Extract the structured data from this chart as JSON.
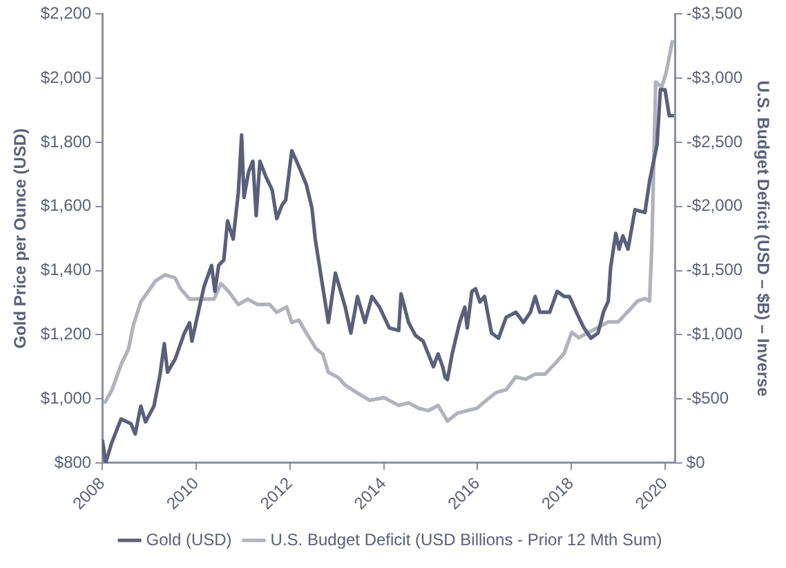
{
  "chart_data": {
    "type": "line",
    "ylabel": "Gold Price per Ounce (USD)",
    "y2label": "U.S. Budget Deficit (USD – $B) – Inverse",
    "xlim": [
      2008,
      2020.22
    ],
    "xticks": [
      2008,
      2010,
      2012,
      2014,
      2016,
      2018,
      2020
    ],
    "ylim": [
      800,
      2200
    ],
    "yticks": [
      {
        "value": 800,
        "label": "$800"
      },
      {
        "value": 1000,
        "label": "$1,000"
      },
      {
        "value": 1200,
        "label": "$1,200"
      },
      {
        "value": 1400,
        "label": "$1,400"
      },
      {
        "value": 1600,
        "label": "$1,600"
      },
      {
        "value": 1800,
        "label": "$1,800"
      },
      {
        "value": 2000,
        "label": "$2,000"
      },
      {
        "value": 2200,
        "label": "$2,200"
      }
    ],
    "y2lim": [
      0,
      -3500
    ],
    "y2ticks": [
      {
        "value": 0,
        "label": "$0"
      },
      {
        "value": -500,
        "label": "-$500"
      },
      {
        "value": -1000,
        "label": "-$1,000"
      },
      {
        "value": -1500,
        "label": "-$1,500"
      },
      {
        "value": -2000,
        "label": "-$2,000"
      },
      {
        "value": -2500,
        "label": "-$2,500"
      },
      {
        "value": -3000,
        "label": "-$3,000"
      },
      {
        "value": -3500,
        "label": "-$3,500"
      }
    ],
    "legend": "bottom",
    "marker": "none",
    "line_style": "solid",
    "series": [
      {
        "name": "Gold (USD)",
        "color": "#5a6079",
        "x": [
          2008.0,
          2008.07,
          2008.2,
          2008.4,
          2008.61,
          2008.7,
          2008.82,
          2008.92,
          2009.1,
          2009.23,
          2009.32,
          2009.39,
          2009.55,
          2009.75,
          2009.86,
          2009.91,
          2010.07,
          2010.17,
          2010.33,
          2010.4,
          2010.48,
          2010.59,
          2010.67,
          2010.79,
          2010.9,
          2010.97,
          2011.02,
          2011.12,
          2011.21,
          2011.28,
          2011.36,
          2011.49,
          2011.62,
          2011.72,
          2011.83,
          2011.91,
          2012.04,
          2012.19,
          2012.35,
          2012.47,
          2012.54,
          2012.82,
          2012.97,
          2013.18,
          2013.3,
          2013.44,
          2013.6,
          2013.75,
          2013.91,
          2014.12,
          2014.32,
          2014.37,
          2014.53,
          2014.68,
          2014.84,
          2014.95,
          2015.06,
          2015.16,
          2015.26,
          2015.31,
          2015.36,
          2015.46,
          2015.62,
          2015.73,
          2015.78,
          2015.88,
          2015.96,
          2016.05,
          2016.15,
          2016.3,
          2016.45,
          2016.61,
          2016.82,
          2016.98,
          2017.13,
          2017.23,
          2017.33,
          2017.54,
          2017.7,
          2017.85,
          2017.96,
          2018.11,
          2018.27,
          2018.42,
          2018.57,
          2018.69,
          2018.79,
          2018.84,
          2018.95,
          2019.02,
          2019.1,
          2019.21,
          2019.36,
          2019.57,
          2019.67,
          2019.83,
          2019.9,
          2020.0,
          2020.09,
          2020.19
        ],
        "values": [
          872,
          800,
          863,
          937,
          922,
          890,
          977,
          928,
          977,
          1075,
          1172,
          1083,
          1123,
          1205,
          1237,
          1180,
          1286,
          1351,
          1416,
          1335,
          1416,
          1433,
          1555,
          1498,
          1644,
          1823,
          1628,
          1709,
          1741,
          1571,
          1741,
          1692,
          1652,
          1562,
          1604,
          1620,
          1774,
          1725,
          1668,
          1595,
          1498,
          1238,
          1392,
          1286,
          1205,
          1319,
          1238,
          1319,
          1286,
          1221,
          1213,
          1327,
          1238,
          1197,
          1180,
          1140,
          1100,
          1140,
          1099,
          1067,
          1060,
          1140,
          1238,
          1286,
          1221,
          1335,
          1343,
          1302,
          1319,
          1205,
          1189,
          1254,
          1270,
          1238,
          1270,
          1319,
          1270,
          1270,
          1335,
          1319,
          1319,
          1270,
          1221,
          1189,
          1205,
          1272,
          1305,
          1410,
          1516,
          1467,
          1508,
          1467,
          1590,
          1581,
          1679,
          1793,
          1964,
          1964,
          1883,
          1883
        ]
      },
      {
        "name": "U.S. Budget Deficit (USD Billions - Prior 12 Mth Sum)",
        "color": "#b0b2bc",
        "axis": "y2",
        "x": [
          2008.04,
          2008.2,
          2008.4,
          2008.56,
          2008.66,
          2008.82,
          2008.98,
          2009.13,
          2009.34,
          2009.55,
          2009.66,
          2009.86,
          2010.07,
          2010.38,
          2010.53,
          2010.69,
          2010.9,
          2011.1,
          2011.31,
          2011.57,
          2011.72,
          2011.93,
          2012.04,
          2012.19,
          2012.35,
          2012.56,
          2012.7,
          2012.82,
          2013.03,
          2013.18,
          2013.44,
          2013.7,
          2014.01,
          2014.32,
          2014.53,
          2014.74,
          2014.95,
          2015.16,
          2015.36,
          2015.57,
          2015.78,
          2015.99,
          2016.19,
          2016.4,
          2016.61,
          2016.82,
          2017.02,
          2017.23,
          2017.44,
          2017.65,
          2017.85,
          2018.01,
          2018.16,
          2018.37,
          2018.58,
          2018.79,
          2019.0,
          2019.21,
          2019.41,
          2019.57,
          2019.67,
          2019.72,
          2019.8,
          2019.93,
          2020.03,
          2020.16
        ],
        "values": [
          -463,
          -565,
          -768,
          -890,
          -1073,
          -1256,
          -1338,
          -1418,
          -1467,
          -1443,
          -1362,
          -1277,
          -1277,
          -1277,
          -1399,
          -1338,
          -1235,
          -1277,
          -1235,
          -1235,
          -1174,
          -1216,
          -1094,
          -1114,
          -1012,
          -890,
          -849,
          -707,
          -666,
          -606,
          -545,
          -488,
          -509,
          -448,
          -468,
          -427,
          -407,
          -448,
          -326,
          -387,
          -407,
          -427,
          -488,
          -549,
          -570,
          -672,
          -651,
          -692,
          -692,
          -773,
          -855,
          -1018,
          -977,
          -1018,
          -1058,
          -1099,
          -1099,
          -1180,
          -1262,
          -1282,
          -1262,
          -1709,
          -2971,
          -2930,
          -3053,
          -3297
        ]
      }
    ]
  }
}
